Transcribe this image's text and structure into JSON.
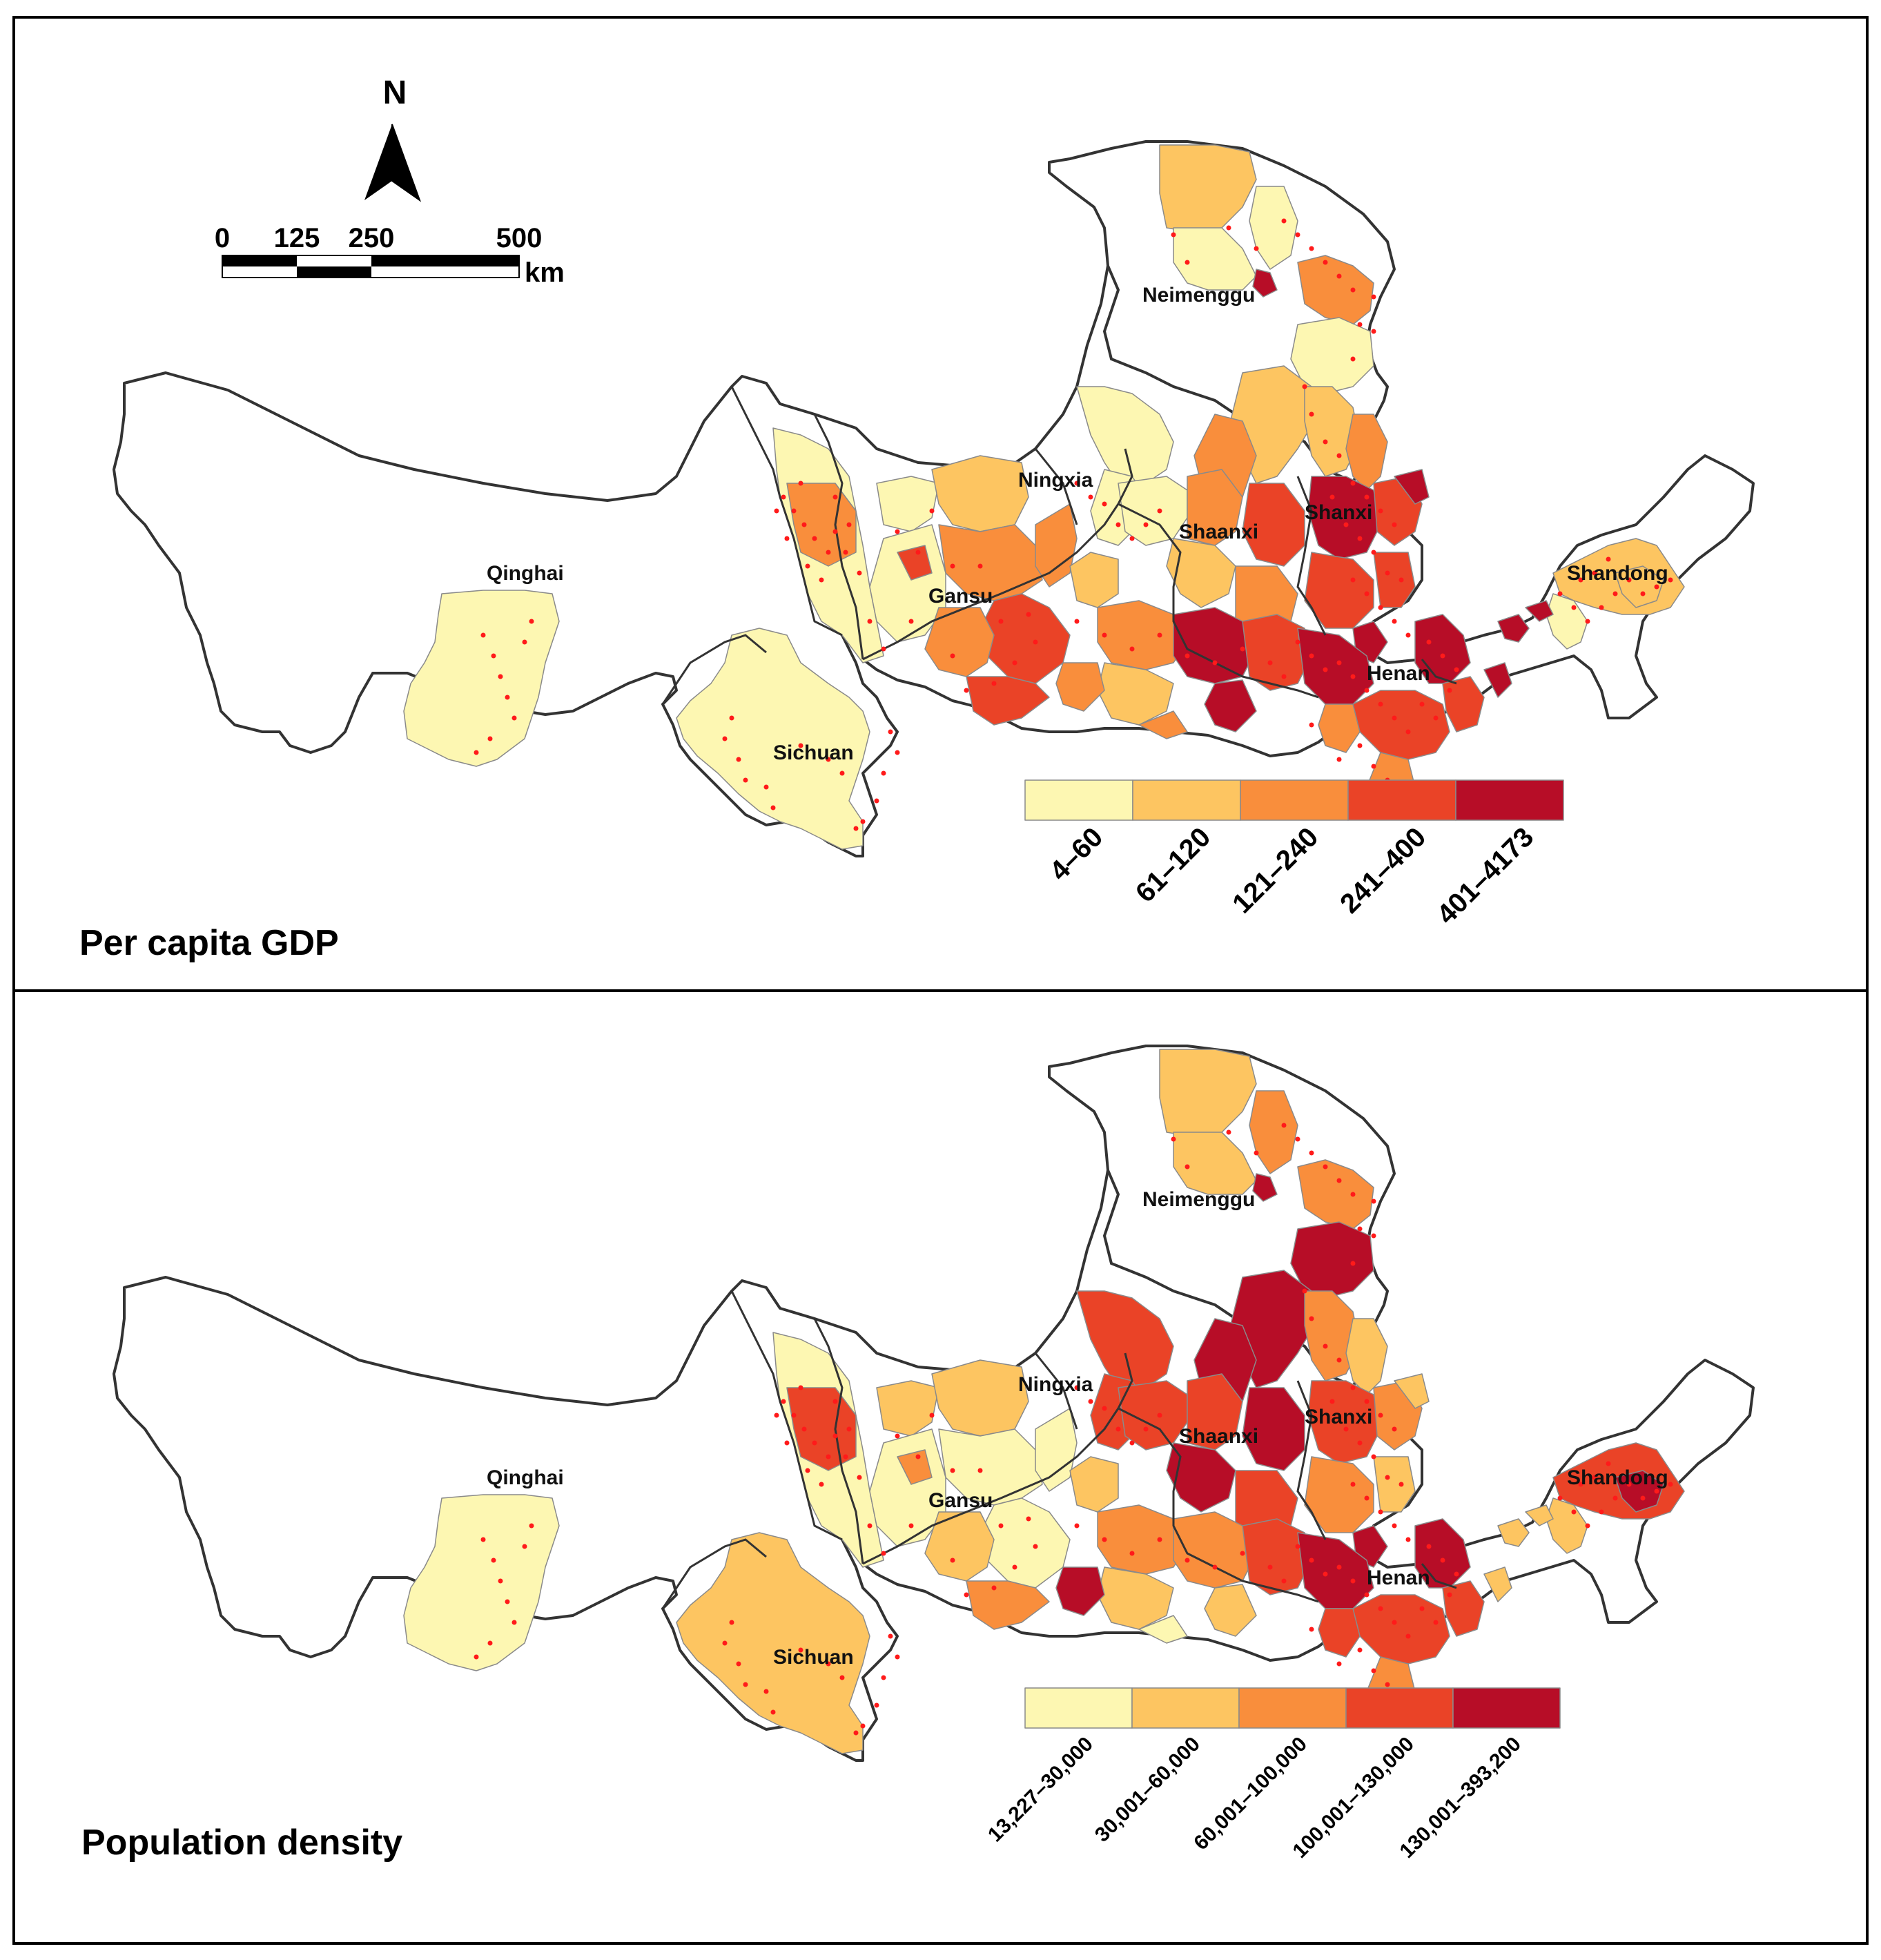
{
  "colors": {
    "c1": "#fdf7b2",
    "c2": "#fdc561",
    "c3": "#f98e3c",
    "c4": "#ea4327",
    "c5": "#b70d27",
    "point": "#ff1a1a",
    "outline": "#333333"
  },
  "north_arrow": {
    "label": "N",
    "icon": "north-arrow-icon"
  },
  "scale_bar": {
    "ticks": [
      "0",
      "125",
      "250",
      "500"
    ],
    "unit": "km"
  },
  "provinces": [
    "Neimenggu",
    "Ningxia",
    "Qinghai",
    "Gansu",
    "Shaanxi",
    "Shanxi",
    "Shandong",
    "Sichuan",
    "Henan"
  ],
  "panels": [
    {
      "title": "Per capita GDP",
      "legend": [
        "4–60",
        "61–120",
        "121–240",
        "241–400",
        "401–4173"
      ]
    },
    {
      "title": "Population density",
      "legend": [
        "13,227–30,000",
        "30,001–60,000",
        "60,001–100,000",
        "100,001–130,000",
        "130,001–393,200"
      ]
    }
  ]
}
